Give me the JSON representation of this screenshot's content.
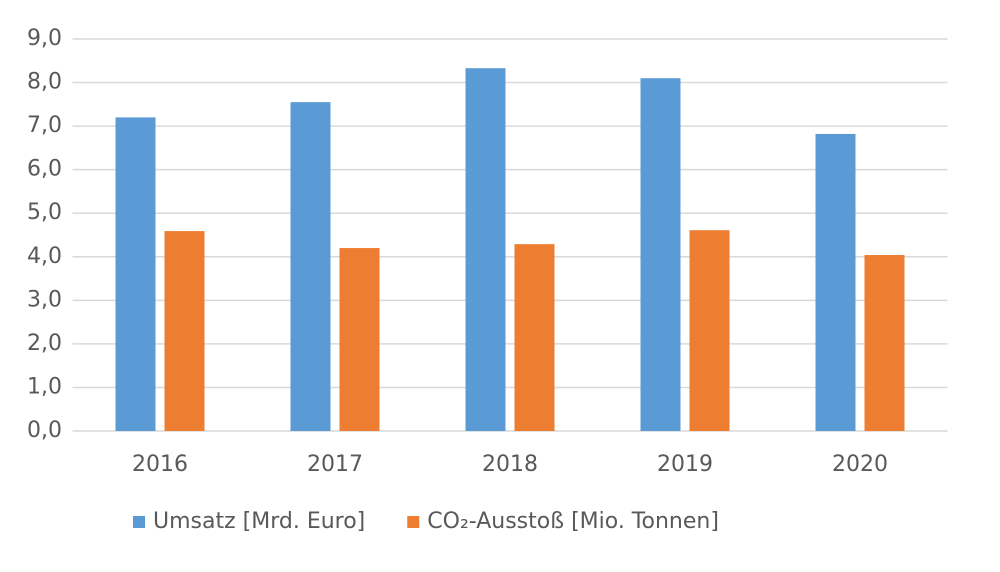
{
  "chart_data": {
    "type": "bar",
    "categories": [
      "2016",
      "2017",
      "2018",
      "2019",
      "2020"
    ],
    "series": [
      {
        "name": "Umsatz [Mrd. Euro]",
        "color": "#5b9bd5",
        "values": [
          7.2,
          7.55,
          8.33,
          8.1,
          6.82
        ]
      },
      {
        "name": "CO₂-Ausstoß [Mio. Tonnen]",
        "color": "#ed7d31",
        "values": [
          4.59,
          4.2,
          4.29,
          4.61,
          4.04
        ]
      }
    ],
    "ylim": [
      0,
      9
    ],
    "yticks": [
      {
        "value": 0,
        "label": "0,0"
      },
      {
        "value": 1,
        "label": "1,0"
      },
      {
        "value": 2,
        "label": "2,0"
      },
      {
        "value": 3,
        "label": "3,0"
      },
      {
        "value": 4,
        "label": "4,0"
      },
      {
        "value": 5,
        "label": "5,0"
      },
      {
        "value": 6,
        "label": "6,0"
      },
      {
        "value": 7,
        "label": "7,0"
      },
      {
        "value": 8,
        "label": "8,0"
      },
      {
        "value": 9,
        "label": "9,0"
      }
    ],
    "grid": true,
    "legend": "bottom"
  }
}
